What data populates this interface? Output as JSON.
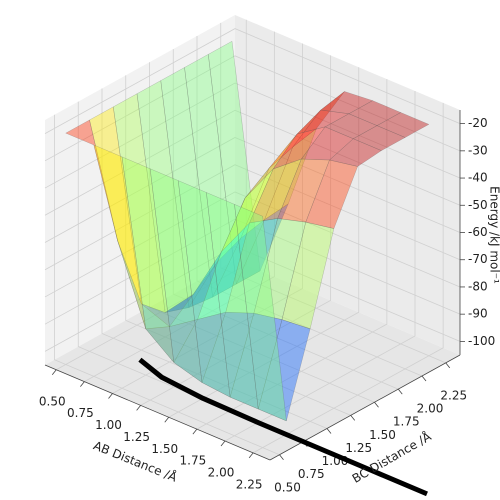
{
  "chart_data": {
    "type": "surface3d",
    "xlabel": "AB Distance /Å",
    "ylabel": "BC Distance /Å",
    "zlabel": "Energy /kJ mol⁻¹",
    "x": [
      0.5,
      0.75,
      1.0,
      1.25,
      1.5,
      1.75,
      2.0,
      2.25
    ],
    "y": [
      0.5,
      0.75,
      1.0,
      1.25,
      1.5,
      1.75,
      2.0,
      2.25
    ],
    "z": [
      [
        -20,
        -20,
        -20,
        -20,
        -20,
        -20,
        -20,
        -20
      ],
      [
        -20,
        -60,
        -88,
        -96,
        -99,
        -100,
        -100,
        -100
      ],
      [
        -20,
        -88,
        -92,
        -85,
        -78,
        -74,
        -72,
        -71
      ],
      [
        -20,
        -96,
        -85,
        -65,
        -50,
        -44,
        -41,
        -39
      ],
      [
        -20,
        -99,
        -78,
        -50,
        -35,
        -27,
        -23,
        -21
      ],
      [
        -20,
        -100,
        -74,
        -44,
        -27,
        -20,
        -20,
        -20
      ],
      [
        -20,
        -100,
        -72,
        -41,
        -23,
        -20,
        -20,
        -20
      ],
      [
        -20,
        -100,
        -71,
        -39,
        -21,
        -20,
        -20,
        -20
      ]
    ],
    "colormap": "jet",
    "alpha": 0.4,
    "trajectory": {
      "color": "#000000",
      "x": [
        0.83,
        1.1,
        1.5,
        2.0,
        2.4,
        3.0,
        3.5
      ],
      "y": [
        0.89,
        0.8,
        0.76,
        0.75,
        0.75,
        0.75,
        0.75
      ]
    },
    "xlim": [
      0.4,
      2.4
    ],
    "ylim": [
      0.4,
      2.4
    ],
    "zlim": [
      -105,
      -15
    ],
    "xticks": [
      {
        "value": 0.5,
        "label": "0.50"
      },
      {
        "value": 0.75,
        "label": "0.75"
      },
      {
        "value": 1.0,
        "label": "1.00"
      },
      {
        "value": 1.25,
        "label": "1.25"
      },
      {
        "value": 1.5,
        "label": "1.50"
      },
      {
        "value": 1.75,
        "label": "1.75"
      },
      {
        "value": 2.0,
        "label": "2.00"
      },
      {
        "value": 2.25,
        "label": "2.25"
      }
    ],
    "yticks": [
      {
        "value": 0.5,
        "label": "0.50"
      },
      {
        "value": 0.75,
        "label": "0.75"
      },
      {
        "value": 1.0,
        "label": "1.00"
      },
      {
        "value": 1.25,
        "label": "1.25"
      },
      {
        "value": 1.5,
        "label": "1.50"
      },
      {
        "value": 1.75,
        "label": "1.75"
      },
      {
        "value": 2.0,
        "label": "2.00"
      },
      {
        "value": 2.25,
        "label": "2.25"
      }
    ],
    "zticks": [
      -100,
      -90,
      -80,
      -70,
      -60,
      -50,
      -40,
      -30,
      -20
    ],
    "grid": true
  }
}
